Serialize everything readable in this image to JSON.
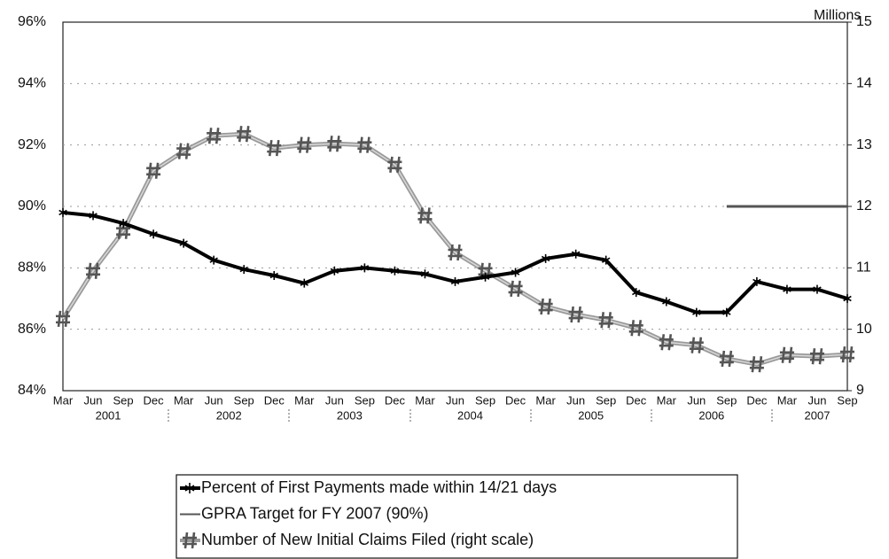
{
  "chart_data": {
    "type": "line",
    "y2label": "Millions",
    "categories": [
      "Mar",
      "Jun",
      "Sep",
      "Dec",
      "Mar",
      "Jun",
      "Sep",
      "Dec",
      "Mar",
      "Jun",
      "Sep",
      "Dec",
      "Mar",
      "Jun",
      "Sep",
      "Dec",
      "Mar",
      "Jun",
      "Sep",
      "Dec",
      "Mar",
      "Jun",
      "Sep",
      "Dec",
      "Mar",
      "Jun",
      "Sep"
    ],
    "year_labels": [
      "2001",
      "2002",
      "2003",
      "2004",
      "2005",
      "2006",
      "2007"
    ],
    "ylim": [
      84,
      96
    ],
    "yticks": [
      {
        "value": 84,
        "label": "84%"
      },
      {
        "value": 86,
        "label": "86%"
      },
      {
        "value": 88,
        "label": "88%"
      },
      {
        "value": 90,
        "label": "90%"
      },
      {
        "value": 92,
        "label": "92%"
      },
      {
        "value": 94,
        "label": "94%"
      },
      {
        "value": 96,
        "label": "96%"
      }
    ],
    "y2lim": [
      9,
      15
    ],
    "y2ticks": [
      9,
      10,
      11,
      12,
      13,
      14,
      15
    ],
    "grid": true,
    "series": [
      {
        "name": "Percent of First Payments made within 14/21 days",
        "color": "#000000",
        "marker": "star",
        "values": [
          89.8,
          89.7,
          89.45,
          89.1,
          88.8,
          88.25,
          87.95,
          87.75,
          87.5,
          87.9,
          88.0,
          87.9,
          87.8,
          87.55,
          87.7,
          87.85,
          88.3,
          88.45,
          88.25,
          87.2,
          86.9,
          86.55,
          86.55,
          87.55,
          87.3,
          87.3,
          87.0
        ]
      },
      {
        "name": "GPRA Target for FY 2007 (90%)",
        "color": "#555555",
        "marker": "none",
        "values": [
          null,
          null,
          null,
          null,
          null,
          null,
          null,
          null,
          null,
          null,
          null,
          null,
          null,
          null,
          null,
          null,
          null,
          null,
          null,
          null,
          null,
          null,
          90,
          90,
          90,
          90,
          90
        ]
      },
      {
        "name": "Number of New Initial Claims Filed (right scale)",
        "color": "#9a9a9a",
        "marker": "hash",
        "axis": "y2",
        "values": [
          10.17,
          10.95,
          11.6,
          12.58,
          12.9,
          13.15,
          13.18,
          12.95,
          13.0,
          13.02,
          13.0,
          12.68,
          11.85,
          11.25,
          10.95,
          10.66,
          10.37,
          10.24,
          10.15,
          10.02,
          9.79,
          9.74,
          9.52,
          9.43,
          9.58,
          9.56,
          9.59
        ]
      }
    ]
  }
}
